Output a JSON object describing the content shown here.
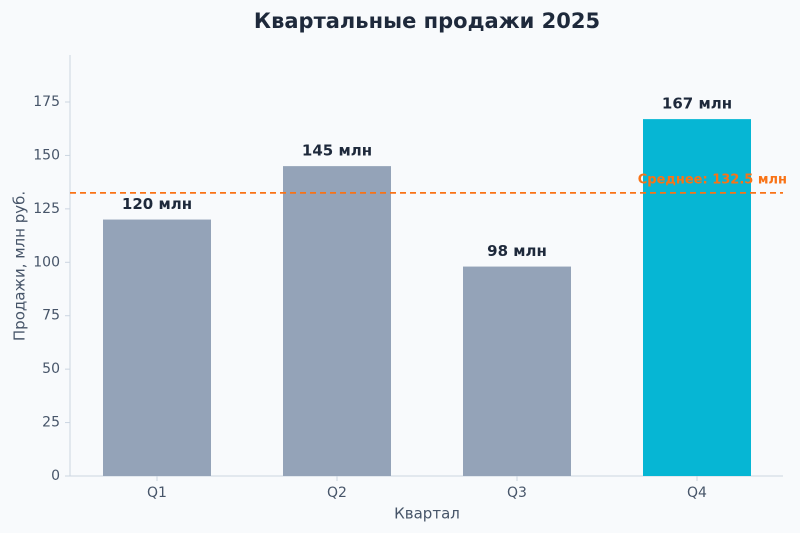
{
  "chart_data": {
    "type": "bar",
    "title": "Квартальные продажи 2025",
    "x_label": "Квартал",
    "y_label": "Продажи, млн руб.",
    "categories": [
      "Q1",
      "Q2",
      "Q3",
      "Q4"
    ],
    "values": [
      120,
      145,
      98,
      167
    ],
    "value_labels": [
      "120 млн",
      "145 млн",
      "98 млн",
      "167 млн"
    ],
    "colors": [
      "#94a3b8",
      "#94a3b8",
      "#94a3b8",
      "#06b6d4"
    ],
    "ylim": [
      0,
      197
    ],
    "yticks": [
      0,
      25,
      50,
      75,
      100,
      125,
      150,
      175
    ],
    "grid": false,
    "reference_line": {
      "value": 132.5,
      "label": "Среднее: 132.5 млн",
      "color": "#f97316"
    }
  }
}
